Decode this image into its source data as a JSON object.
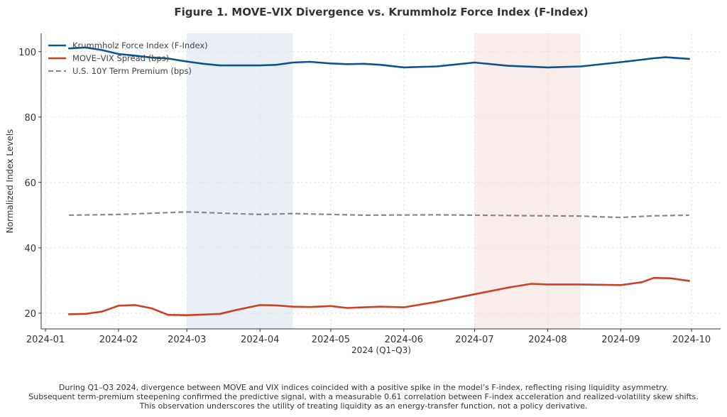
{
  "chart_data": {
    "type": "line",
    "title": "Figure 1. MOVE–VIX Divergence vs. Krummholz Force Index (F-Index)",
    "xlabel": "2024 (Q1–Q3)",
    "ylabel": "Normalized Index Levels",
    "xlim": [
      "2024-01-01",
      "2024-10-08"
    ],
    "ylim": [
      15.2,
      105.6
    ],
    "x_ticks": [
      "2024-01",
      "2024-02",
      "2024-03",
      "2024-04",
      "2024-05",
      "2024-06",
      "2024-07",
      "2024-08",
      "2024-09",
      "2024-10"
    ],
    "y_ticks": [
      20,
      40,
      60,
      80,
      100
    ],
    "grid": true,
    "legend_position": "top-left",
    "shaded_regions": [
      {
        "start": "2024-03-01",
        "end": "2024-04-15",
        "color": "#c9d7e4"
      },
      {
        "start": "2024-07-01",
        "end": "2024-08-15",
        "color": "#f1d3cd"
      }
    ],
    "series": [
      {
        "name": "Krummholz Force Index (F-Index)",
        "color": "#0b5394",
        "style": "solid",
        "x": [
          "2024-01-11",
          "2024-01-18",
          "2024-01-25",
          "2024-02-01",
          "2024-02-08",
          "2024-02-15",
          "2024-02-22",
          "2024-03-01",
          "2024-03-08",
          "2024-03-15",
          "2024-03-22",
          "2024-04-01",
          "2024-04-08",
          "2024-04-15",
          "2024-04-22",
          "2024-05-01",
          "2024-05-08",
          "2024-05-15",
          "2024-05-22",
          "2024-06-01",
          "2024-06-15",
          "2024-07-01",
          "2024-07-15",
          "2024-08-01",
          "2024-08-15",
          "2024-09-01",
          "2024-09-15",
          "2024-09-20",
          "2024-09-30"
        ],
        "values": [
          101.0,
          101.3,
          100.5,
          99.3,
          98.8,
          98.2,
          97.9,
          97.0,
          96.3,
          95.8,
          95.8,
          95.8,
          96.0,
          96.7,
          96.9,
          96.4,
          96.2,
          96.3,
          96.0,
          95.2,
          95.5,
          96.7,
          95.7,
          95.2,
          95.5,
          96.8,
          98.0,
          98.3,
          97.8
        ]
      },
      {
        "name": "MOVE–VIX Spread (bps)",
        "color": "#cc4125",
        "style": "solid",
        "x": [
          "2024-01-11",
          "2024-01-18",
          "2024-01-25",
          "2024-02-01",
          "2024-02-08",
          "2024-02-15",
          "2024-02-22",
          "2024-03-01",
          "2024-03-08",
          "2024-03-15",
          "2024-03-22",
          "2024-04-01",
          "2024-04-08",
          "2024-04-15",
          "2024-04-22",
          "2024-05-01",
          "2024-05-08",
          "2024-05-15",
          "2024-05-22",
          "2024-06-01",
          "2024-06-15",
          "2024-07-01",
          "2024-07-15",
          "2024-07-25",
          "2024-08-01",
          "2024-08-15",
          "2024-09-01",
          "2024-09-10",
          "2024-09-15",
          "2024-09-22",
          "2024-09-30"
        ],
        "values": [
          19.7,
          19.8,
          20.5,
          22.3,
          22.5,
          21.5,
          19.5,
          19.4,
          19.6,
          19.8,
          21.0,
          22.5,
          22.4,
          22.0,
          21.9,
          22.2,
          21.6,
          21.8,
          22.0,
          21.8,
          23.5,
          25.8,
          27.8,
          29.0,
          28.8,
          28.8,
          28.6,
          29.5,
          30.8,
          30.7,
          29.9
        ]
      },
      {
        "name": "U.S. 10Y Term Premium (bps)",
        "color": "#888888",
        "style": "dashed",
        "x": [
          "2024-01-11",
          "2024-02-01",
          "2024-03-01",
          "2024-04-01",
          "2024-04-15",
          "2024-05-15",
          "2024-06-15",
          "2024-07-15",
          "2024-08-15",
          "2024-09-01",
          "2024-09-15",
          "2024-09-30"
        ],
        "values": [
          50.0,
          50.2,
          51.0,
          50.2,
          50.5,
          50.0,
          50.1,
          49.9,
          49.7,
          49.3,
          49.8,
          50.0
        ]
      }
    ]
  },
  "caption": [
    "During Q1–Q3 2024, divergence between MOVE and VIX indices coincided with a positive spike in the model’s F-index, reflecting rising liquidity asymmetry.",
    "Subsequent term-premium steepening confirmed the predictive signal, with a measurable 0.61 correlation between F-index acceleration and realized-volatility skew shifts.",
    "This observation underscores the utility of treating liquidity as an energy-transfer function, not a policy derivative."
  ]
}
